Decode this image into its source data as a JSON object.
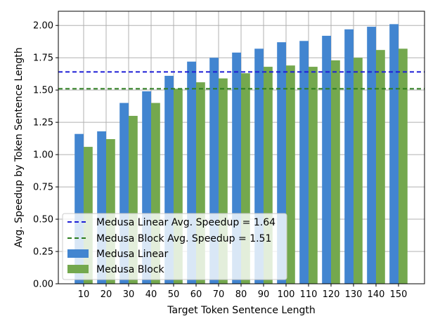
{
  "chart_data": {
    "type": "bar",
    "title": "",
    "xlabel": "Target Token Sentence Length",
    "ylabel": "Avg. Speedup by Token Sentence Length",
    "categories": [
      "10",
      "20",
      "30",
      "40",
      "50",
      "60",
      "70",
      "80",
      "90",
      "100",
      "110",
      "120",
      "130",
      "140",
      "150"
    ],
    "series": [
      {
        "name": "Medusa Linear",
        "color": "#4285d0",
        "values": [
          1.16,
          1.18,
          1.4,
          1.49,
          1.61,
          1.72,
          1.75,
          1.79,
          1.82,
          1.87,
          1.88,
          1.92,
          1.97,
          1.99,
          2.01
        ]
      },
      {
        "name": "Medusa Block",
        "color": "#74a84e",
        "values": [
          1.06,
          1.12,
          1.3,
          1.4,
          1.51,
          1.56,
          1.59,
          1.63,
          1.68,
          1.69,
          1.68,
          1.73,
          1.75,
          1.81,
          1.82
        ]
      }
    ],
    "reference_lines": [
      {
        "label": "Medusa Linear Avg. Speedup = 1.64",
        "value": 1.64,
        "color": "#1f1fd6",
        "style": "dashed"
      },
      {
        "label": "Medusa Block Avg. Speedup = 1.51",
        "value": 1.51,
        "color": "#2d7d1f",
        "style": "dashed"
      }
    ],
    "ylim": [
      0,
      2.11
    ],
    "yticks": [
      "0.00",
      "0.25",
      "0.50",
      "0.75",
      "1.00",
      "1.25",
      "1.50",
      "1.75",
      "2.00"
    ],
    "grid": true,
    "legend_position": "lower-left"
  }
}
